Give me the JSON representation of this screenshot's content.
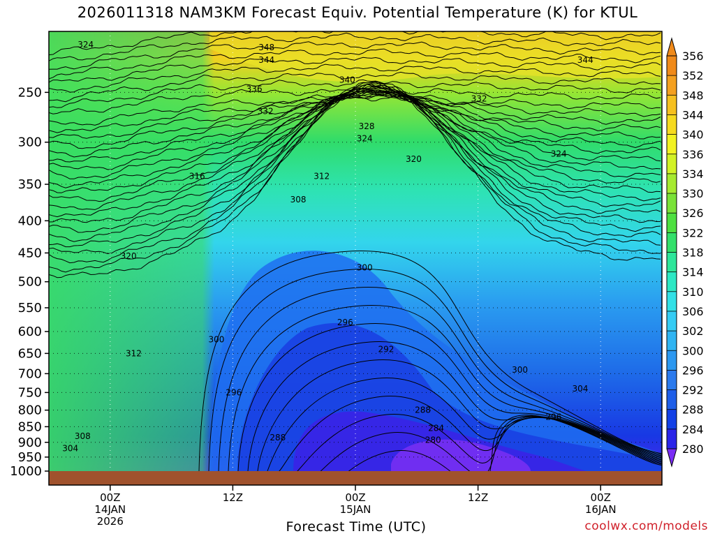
{
  "chart_data": {
    "type": "heatmap",
    "title": "2026011318 NAM3KM Forecast Equiv. Potential Temperature (K) for KTUL",
    "xlabel": "Forecast Time (UTC)",
    "ylabel": "",
    "credit": "coolwx.com/models",
    "y_scale": "log",
    "ylim": [
      1000,
      200
    ],
    "y_ticks": [
      250,
      300,
      350,
      400,
      450,
      500,
      550,
      600,
      650,
      700,
      750,
      800,
      850,
      900,
      950,
      1000
    ],
    "x_ticks": [
      {
        "label": "00Z",
        "label2": "14JAN",
        "label3": "2026",
        "hour": 6
      },
      {
        "label": "12Z",
        "label2": "",
        "label3": "",
        "hour": 18
      },
      {
        "label": "00Z",
        "label2": "15JAN",
        "label3": "",
        "hour": 30
      },
      {
        "label": "12Z",
        "label2": "",
        "label3": "",
        "hour": 42
      },
      {
        "label": "00Z",
        "label2": "16JAN",
        "label3": "",
        "hour": 54
      }
    ],
    "x_range_hours": [
      0,
      60
    ],
    "colorbar_levels": [
      280,
      284,
      288,
      292,
      296,
      300,
      302,
      306,
      310,
      314,
      318,
      322,
      326,
      330,
      334,
      336,
      340,
      344,
      348,
      352,
      356
    ],
    "colorbar_colors": [
      "#7a2cf5",
      "#2a24e8",
      "#1340e6",
      "#1e5ee8",
      "#2b7aed",
      "#2c98f0",
      "#2fb4f2",
      "#35ccf4",
      "#32e0e6",
      "#2de8c4",
      "#2ee69a",
      "#33e06a",
      "#4ee040",
      "#7ae238",
      "#a6ea30",
      "#d2f226",
      "#f2f222",
      "#f6da20",
      "#f6c020",
      "#f4a020",
      "#f08a1a"
    ],
    "contour_labels": [
      {
        "value": "324",
        "hour": 3.6,
        "p": 210
      },
      {
        "value": "348",
        "hour": 21.3,
        "p": 212
      },
      {
        "value": "344",
        "hour": 21.3,
        "p": 222
      },
      {
        "value": "340",
        "hour": 29.2,
        "p": 239
      },
      {
        "value": "336",
        "hour": 20.1,
        "p": 247
      },
      {
        "value": "332",
        "hour": 21.2,
        "p": 268
      },
      {
        "value": "328",
        "hour": 31.1,
        "p": 283
      },
      {
        "value": "324",
        "hour": 30.9,
        "p": 296
      },
      {
        "value": "320",
        "hour": 35.7,
        "p": 319
      },
      {
        "value": "324",
        "hour": 49.9,
        "p": 313
      },
      {
        "value": "344",
        "hour": 52.5,
        "p": 222
      },
      {
        "value": "332",
        "hour": 42.1,
        "p": 256
      },
      {
        "value": "316",
        "hour": 14.5,
        "p": 340
      },
      {
        "value": "312",
        "hour": 26.7,
        "p": 340
      },
      {
        "value": "308",
        "hour": 24.4,
        "p": 370
      },
      {
        "value": "320",
        "hour": 7.8,
        "p": 455
      },
      {
        "value": "300",
        "hour": 30.9,
        "p": 475
      },
      {
        "value": "296",
        "hour": 29.0,
        "p": 580
      },
      {
        "value": "300",
        "hour": 16.4,
        "p": 618
      },
      {
        "value": "312",
        "hour": 8.3,
        "p": 650
      },
      {
        "value": "292",
        "hour": 33.0,
        "p": 640
      },
      {
        "value": "300",
        "hour": 46.1,
        "p": 690
      },
      {
        "value": "304",
        "hour": 52.0,
        "p": 740
      },
      {
        "value": "296",
        "hour": 18.1,
        "p": 750
      },
      {
        "value": "288",
        "hour": 36.6,
        "p": 800
      },
      {
        "value": "296",
        "hour": 49.4,
        "p": 820
      },
      {
        "value": "284",
        "hour": 37.9,
        "p": 855
      },
      {
        "value": "308",
        "hour": 3.3,
        "p": 880
      },
      {
        "value": "288",
        "hour": 22.4,
        "p": 885
      },
      {
        "value": "280",
        "hour": 37.6,
        "p": 892
      },
      {
        "value": "304",
        "hour": 2.1,
        "p": 920
      }
    ]
  }
}
